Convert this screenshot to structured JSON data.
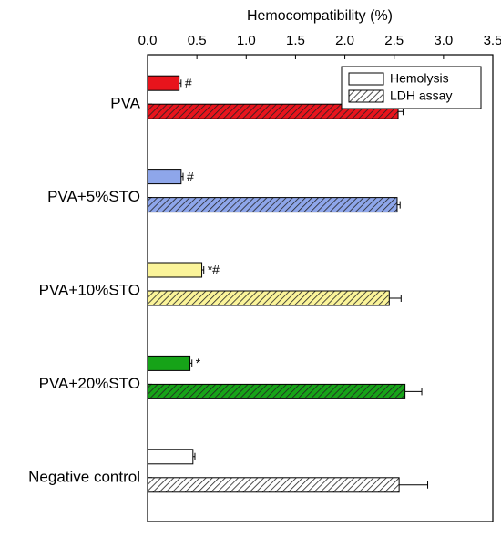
{
  "chart_data": {
    "type": "hbar",
    "x_label": "Hemocompatibility (%)",
    "categories": [
      "PVA",
      "PVA+5%STO",
      "PVA+10%STO",
      "PVA+20%STO",
      "Negative control"
    ],
    "colors": [
      "#e8141c",
      "#8ea6ea",
      "#fbf49a",
      "#16a318",
      "#ffffff"
    ],
    "series": [
      {
        "name": "Hemolysis",
        "hatch": false,
        "values": [
          0.32,
          0.34,
          0.55,
          0.43,
          0.46
        ],
        "errors": [
          0.02,
          0.02,
          0.02,
          0.02,
          0.02
        ]
      },
      {
        "name": "LDH assay",
        "hatch": true,
        "values": [
          2.54,
          2.53,
          2.45,
          2.61,
          2.55
        ],
        "errors": [
          0.05,
          0.03,
          0.12,
          0.17,
          0.29
        ]
      }
    ],
    "annotations": [
      "#",
      "#",
      "*#",
      "*",
      null
    ],
    "xlim": [
      0,
      3.5
    ],
    "xticks": [
      {
        "value": 0,
        "label": "0.0"
      },
      0.5,
      {
        "value": 1,
        "label": "1.0"
      },
      1.5,
      {
        "value": 2,
        "label": "2.0"
      },
      2.5,
      {
        "value": 3,
        "label": "3.0"
      },
      3.5
    ],
    "legend": "upper right"
  }
}
